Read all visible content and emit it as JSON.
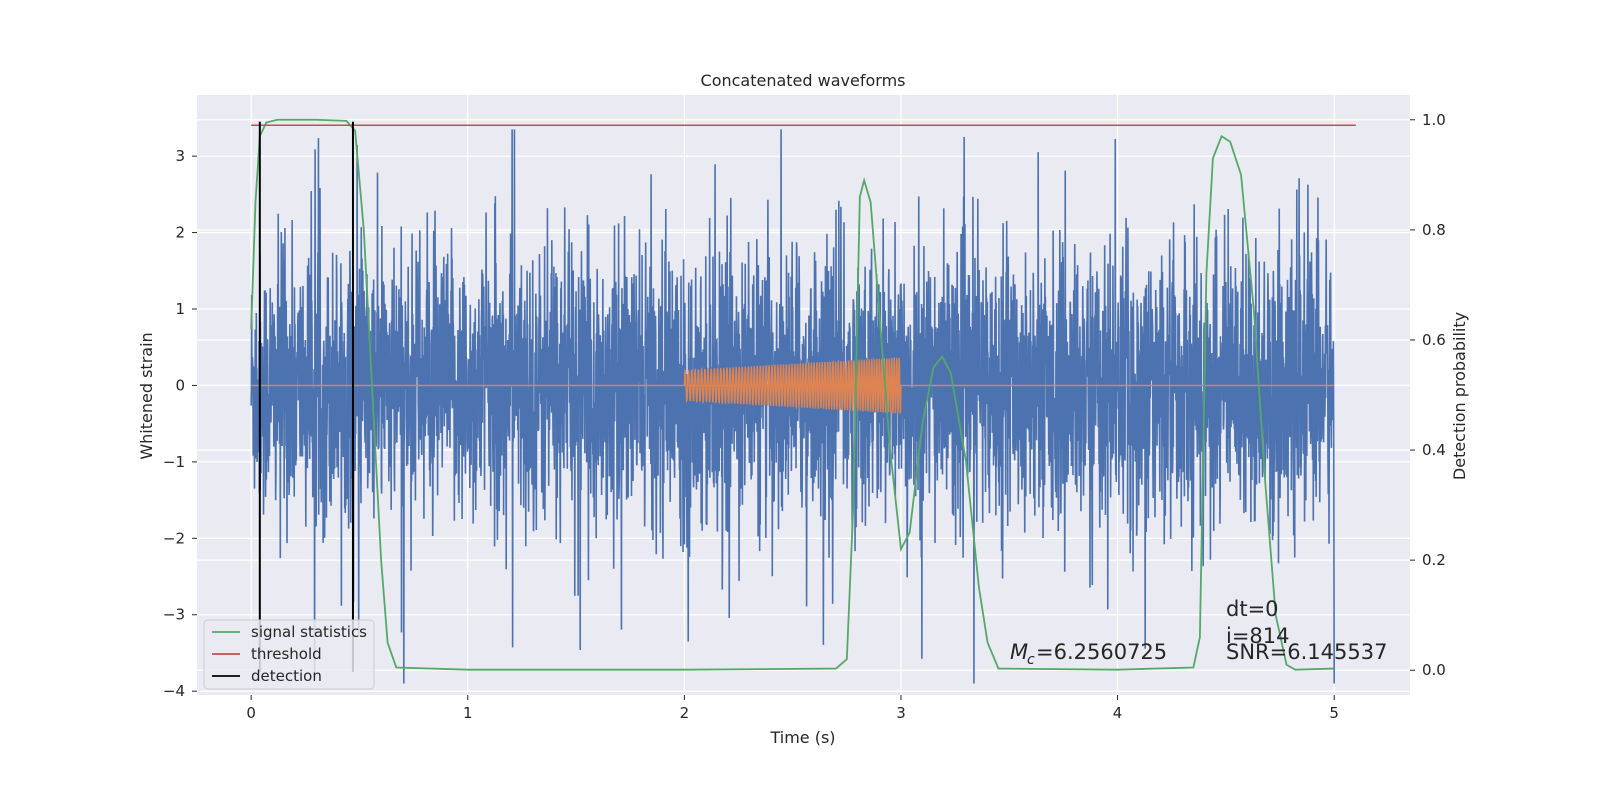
{
  "chart_data": {
    "type": "line",
    "title": "Concatenated waveforms",
    "xlabel": "Time (s)",
    "ylabel": "Whitened strain",
    "y2label": "Detection probability",
    "xlim": [
      -0.25,
      5.35
    ],
    "ylim": [
      -4.05,
      3.8
    ],
    "y2lim": [
      -0.045,
      1.045
    ],
    "xticks": [
      0,
      1,
      2,
      3,
      4,
      5
    ],
    "yticks": [
      -4,
      -3,
      -2,
      -1,
      0,
      1,
      2,
      3
    ],
    "y2ticks": [
      0.0,
      0.2,
      0.4,
      0.6,
      0.8,
      1.0
    ],
    "xtick_labels": [
      "0",
      "1",
      "2",
      "3",
      "4",
      "5"
    ],
    "ytick_labels": [
      "−4",
      "−3",
      "−2",
      "−1",
      "0",
      "1",
      "2",
      "3"
    ],
    "y2tick_labels": [
      "0.0",
      "0.2",
      "0.4",
      "0.6",
      "0.8",
      "1.0"
    ],
    "grid": true,
    "legend_position": "lower-left",
    "colors": {
      "strain": "#4c72b0",
      "template": "#dd8452",
      "signal_statistics": "#55a868",
      "threshold": "#c44e52",
      "detection": "#000000",
      "background": "#eaeaf2"
    },
    "series": [
      {
        "name": "whitened strain",
        "description_values": "dense noise trace spanning roughly -3.9 to 3.4 over 0-5 s",
        "t_range": [
          0,
          5
        ]
      },
      {
        "name": "injected chirp",
        "t_range": [
          2,
          3
        ],
        "amplitude_start": 0.2,
        "amplitude_end": 0.37
      },
      {
        "name": "signal statistics",
        "axis": "right",
        "points": [
          [
            0.0,
            0.62
          ],
          [
            0.02,
            0.85
          ],
          [
            0.04,
            0.97
          ],
          [
            0.07,
            0.995
          ],
          [
            0.12,
            1.0
          ],
          [
            0.3,
            1.0
          ],
          [
            0.44,
            0.998
          ],
          [
            0.48,
            0.98
          ],
          [
            0.52,
            0.8
          ],
          [
            0.56,
            0.5
          ],
          [
            0.6,
            0.2
          ],
          [
            0.63,
            0.05
          ],
          [
            0.67,
            0.005
          ],
          [
            1.0,
            0.001
          ],
          [
            2.0,
            0.001
          ],
          [
            2.7,
            0.003
          ],
          [
            2.75,
            0.02
          ],
          [
            2.78,
            0.3
          ],
          [
            2.81,
            0.86
          ],
          [
            2.83,
            0.89
          ],
          [
            2.86,
            0.85
          ],
          [
            2.9,
            0.65
          ],
          [
            2.95,
            0.4
          ],
          [
            3.0,
            0.22
          ],
          [
            3.04,
            0.25
          ],
          [
            3.1,
            0.45
          ],
          [
            3.15,
            0.55
          ],
          [
            3.19,
            0.57
          ],
          [
            3.23,
            0.54
          ],
          [
            3.3,
            0.38
          ],
          [
            3.36,
            0.15
          ],
          [
            3.4,
            0.05
          ],
          [
            3.45,
            0.003
          ],
          [
            4.0,
            0.001
          ],
          [
            4.35,
            0.005
          ],
          [
            4.38,
            0.06
          ],
          [
            4.41,
            0.72
          ],
          [
            4.44,
            0.93
          ],
          [
            4.48,
            0.97
          ],
          [
            4.52,
            0.96
          ],
          [
            4.57,
            0.9
          ],
          [
            4.63,
            0.65
          ],
          [
            4.68,
            0.35
          ],
          [
            4.73,
            0.1
          ],
          [
            4.78,
            0.01
          ],
          [
            4.82,
            0.001
          ],
          [
            5.0,
            0.003
          ]
        ]
      },
      {
        "name": "threshold",
        "axis": "right",
        "value": 0.99,
        "x_range": [
          0,
          5.1
        ]
      },
      {
        "name": "detection",
        "axis": "left",
        "x": [
          0.04,
          0.47
        ],
        "y_range": [
          -3.75,
          3.45
        ]
      }
    ],
    "legend": [
      "signal statistics",
      "threshold",
      "detection"
    ],
    "annotations": {
      "chirp_mass_symbol": "M",
      "chirp_mass_sub": "c",
      "chirp_mass_value": "=6.2560725",
      "dt": "dt=0",
      "index": "i=814",
      "snr": "SNR=6.145537"
    }
  }
}
